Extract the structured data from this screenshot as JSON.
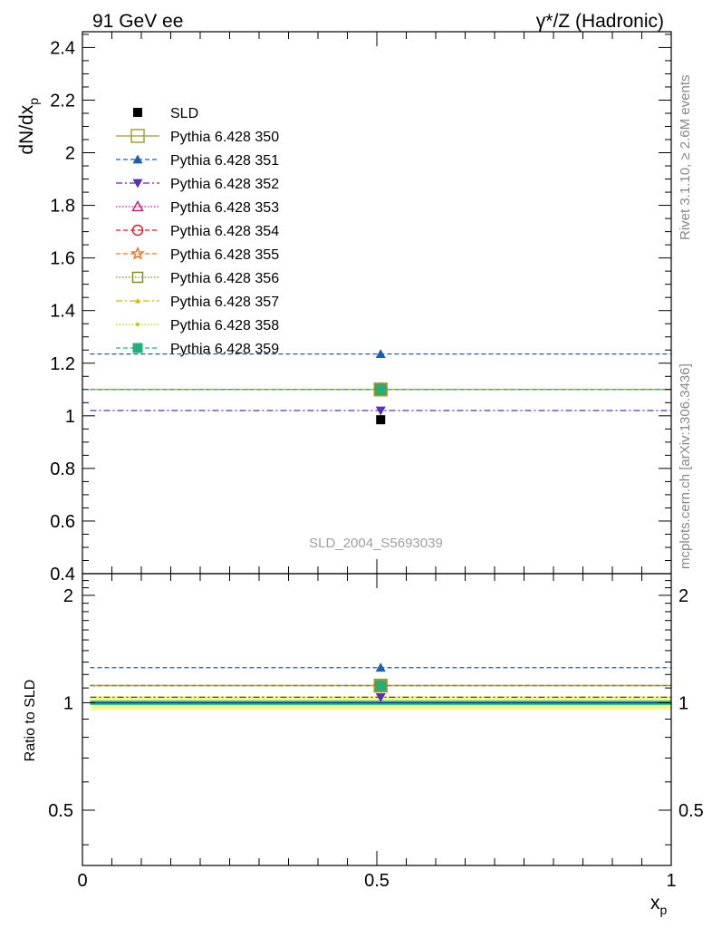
{
  "header": {
    "left": "91 GeV ee",
    "right": "γ*/Z (Hadronic)"
  },
  "side": {
    "rivet": "Rivet 3.1.10, ≥ 2.6M events",
    "mcplots": "mcplots.cern.ch [arXiv:1306.3436]"
  },
  "analysis_label": "SLD_2004_S5693039",
  "chart_data": [
    {
      "type": "scatter",
      "panel": "main",
      "ylabel": "dN/dx",
      "ylabel_sub": "p",
      "ylim": [
        0.4,
        2.46
      ],
      "xlim": [
        0,
        1
      ],
      "y_ticks": [
        "0.4",
        "0.6",
        "0.8",
        "1",
        "1.2",
        "1.4",
        "1.6",
        "1.8",
        "2",
        "2.2",
        "2.4"
      ],
      "legend_position": "top-left",
      "x_range": [
        0.013,
        1.0
      ],
      "x_point": 0.5065,
      "series": [
        {
          "name": "SLD",
          "y": 0.985,
          "color": "#000000",
          "marker": "square-filled",
          "dash": "none",
          "is_data": true
        },
        {
          "name": "Pythia 6.428 350",
          "y": 1.1,
          "color": "#9a9a2a",
          "marker": "square-open",
          "dash": "solid"
        },
        {
          "name": "Pythia 6.428 351",
          "y": 1.235,
          "color": "#1a5fb4",
          "marker": "triangle-up-filled",
          "dash": "5,3"
        },
        {
          "name": "Pythia 6.428 352",
          "y": 1.02,
          "color": "#5b2fb5",
          "marker": "triangle-down-filled",
          "dash": "7,3,2,3"
        },
        {
          "name": "Pythia 6.428 353",
          "y": 1.1,
          "color": "#c2187a",
          "marker": "triangle-up-open",
          "dash": "1.5,2"
        },
        {
          "name": "Pythia 6.428 354",
          "y": 1.1,
          "color": "#e01b24",
          "marker": "circle-open",
          "dash": "5,3"
        },
        {
          "name": "Pythia 6.428 355",
          "y": 1.1,
          "color": "#f07020",
          "marker": "star-open",
          "dash": "5,3"
        },
        {
          "name": "Pythia 6.428 356",
          "y": 1.1,
          "color": "#7a8a10",
          "marker": "square-open",
          "dash": "1.5,2"
        },
        {
          "name": "Pythia 6.428 357",
          "y": 1.1,
          "color": "#d4b800",
          "marker": "tri-small",
          "dash": "7,3,2,3"
        },
        {
          "name": "Pythia 6.428 358",
          "y": 1.1,
          "color": "#b8d400",
          "marker": "dot-small",
          "dash": "1.5,2"
        },
        {
          "name": "Pythia 6.428 359",
          "y": 1.1,
          "color": "#20b080",
          "marker": "square-filled",
          "dash": "5,3"
        }
      ]
    },
    {
      "type": "scatter",
      "panel": "ratio",
      "ylabel": "Ratio to SLD",
      "xlabel": "x",
      "xlabel_sub": "p",
      "ylim": [
        0.35,
        2.3
      ],
      "xlim": [
        0,
        1
      ],
      "y_ticks_left": [
        "0.5",
        "1",
        "2"
      ],
      "y_ticks_right": [
        "0.5",
        "1",
        "2"
      ],
      "x_ticks": [
        "0",
        "0.5",
        "1"
      ],
      "x_tick_values": [
        0,
        0.5,
        1
      ],
      "band_inner": [
        0.985,
        1.015
      ],
      "band_outer": [
        0.955,
        1.045
      ],
      "series_ratio": [
        {
          "name": "SLD",
          "y": 1.0
        },
        {
          "name": "Pythia 6.428 350",
          "y": 1.117
        },
        {
          "name": "Pythia 6.428 351",
          "y": 1.254
        },
        {
          "name": "Pythia 6.428 352",
          "y": 1.036
        },
        {
          "name": "Pythia 6.428 353",
          "y": 1.117
        },
        {
          "name": "Pythia 6.428 354",
          "y": 1.117
        },
        {
          "name": "Pythia 6.428 355",
          "y": 1.117
        },
        {
          "name": "Pythia 6.428 356",
          "y": 1.117
        },
        {
          "name": "Pythia 6.428 357",
          "y": 1.117
        },
        {
          "name": "Pythia 6.428 358",
          "y": 1.117
        },
        {
          "name": "Pythia 6.428 359",
          "y": 1.117
        }
      ],
      "colors": {
        "band_inner": "#33cc88",
        "band_outer": "#f4f78c",
        "data_line": "#1a2d9e"
      }
    }
  ]
}
